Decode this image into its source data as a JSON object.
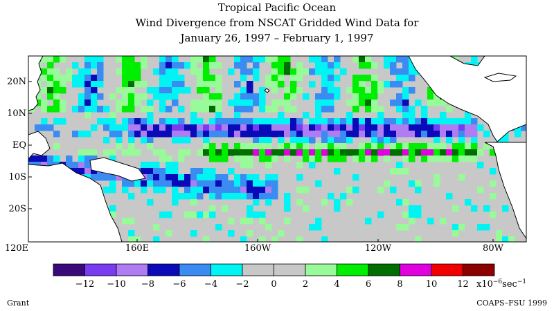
{
  "title": {
    "line1": "Tropical Pacific Ocean",
    "line2": "Wind Divergence from NSCAT Gridded Wind Data for",
    "line3": "January 26, 1997 – February 1, 1997"
  },
  "map": {
    "lon_ticks": [
      "120E",
      "160E",
      "160W",
      "120W",
      "80W"
    ],
    "lat_ticks": [
      "20N",
      "10N",
      "EQ",
      "10S",
      "20S"
    ],
    "colors": {
      "land": "#ffffff",
      "coast": "#000000",
      "levels": [
        "#3a0a7a",
        "#7a3cf0",
        "#b07cf2",
        "#0a0ab8",
        "#3a8cf2",
        "#00f4f4",
        "#c8c8c8",
        "#c8c8c8",
        "#98fa98",
        "#00ee00",
        "#006e00",
        "#e000e0",
        "#f20000",
        "#8c0000"
      ]
    }
  },
  "colorbar": {
    "labels": [
      "−12",
      "−10",
      "−8",
      "−6",
      "−4",
      "−2",
      "0",
      "2",
      "4",
      "6",
      "8",
      "10",
      "12"
    ],
    "units": "x10",
    "units_exp": "−6",
    "units_tail": "sec",
    "units_tail_exp": "−1"
  },
  "credits": {
    "left": "Grant",
    "right": "COAPS–FSU 1999"
  }
}
